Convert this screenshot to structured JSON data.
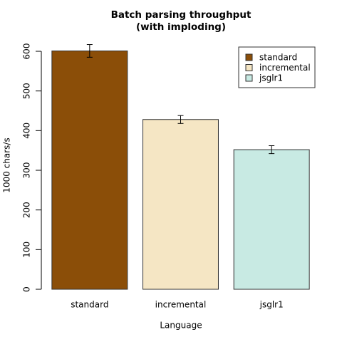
{
  "chart_data": {
    "type": "bar",
    "title": "Batch parsing throughput",
    "subtitle": "(with imploding)",
    "x_label": "Language",
    "y_label": "1000 chars/s",
    "categories": [
      "standard",
      "incremental",
      "jsglr1"
    ],
    "values": [
      601,
      428,
      352
    ],
    "errors": [
      16,
      10,
      10
    ],
    "colors": [
      "#8b4e08",
      "#f5e6c4",
      "#c8eae3"
    ],
    "ylim": [
      0,
      600
    ],
    "yticks": [
      0,
      100,
      200,
      300,
      400,
      500,
      600
    ],
    "grid": false,
    "legend_position": "top-right"
  }
}
